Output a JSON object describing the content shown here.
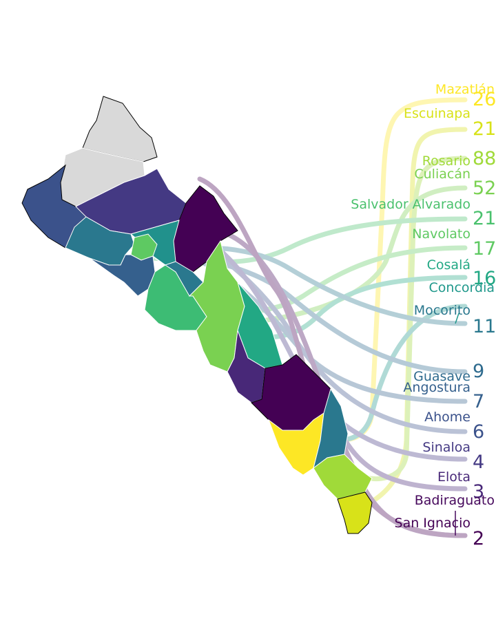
{
  "map": {
    "legend": [
      {
        "name": "Mazatlán",
        "value": "26",
        "color": "#fde725"
      },
      {
        "name": "Escuinapa",
        "value": "21",
        "color": "#d8e219"
      },
      {
        "name": "Rosario",
        "value": "88",
        "color": "#a0da39"
      },
      {
        "name": "Culiacán",
        "value": "52",
        "color": "#7ad151"
      },
      {
        "name": "Salvador Alvarado",
        "value": "21",
        "color": "#4ac16d"
      },
      {
        "name": "Navolato",
        "value": "17",
        "color": "#5ec962"
      },
      {
        "name": "Cosalá",
        "value": "16",
        "color": "#22a884"
      },
      {
        "name": "Concordia",
        "value": "",
        "color": "#1f988b"
      },
      {
        "name": "Mocorito",
        "value": "11",
        "color": "#2a788e"
      },
      {
        "name": "Guasave",
        "value": "9",
        "color": "#2f6b8e"
      },
      {
        "name": "Angostura",
        "value": "7",
        "color": "#35608d"
      },
      {
        "name": "Ahome",
        "value": "6",
        "color": "#3b528b"
      },
      {
        "name": "Sinaloa",
        "value": "4",
        "color": "#443983"
      },
      {
        "name": "Elota",
        "value": "3",
        "color": "#482878"
      },
      {
        "name": "Badiraguato",
        "value": "",
        "color": "#46085c"
      },
      {
        "name": "San Ignacio",
        "value": "2",
        "color": "#440154"
      }
    ],
    "no_data_color": "#d9d9d9"
  }
}
